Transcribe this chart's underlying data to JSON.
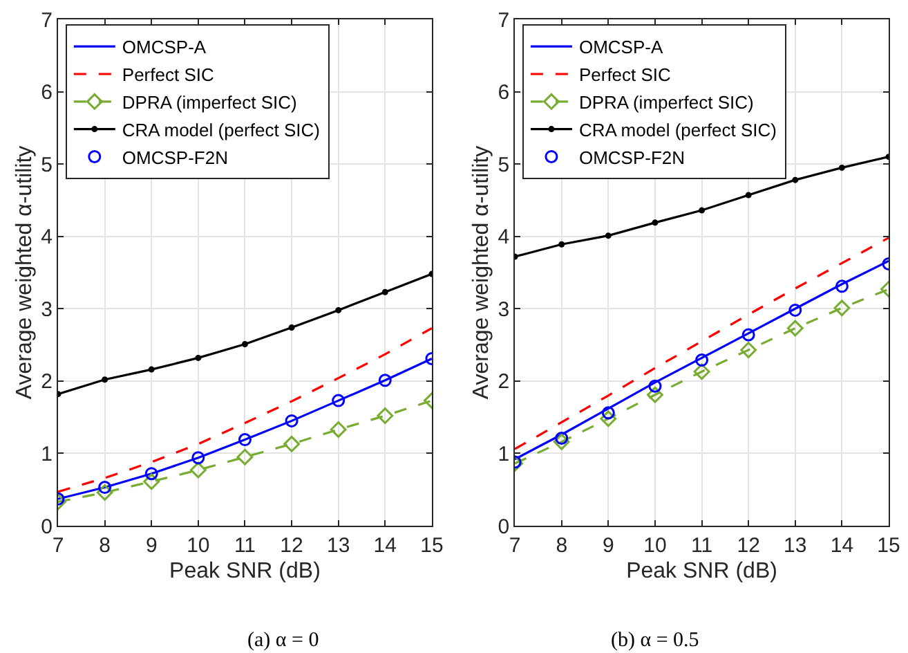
{
  "chart_data": [
    {
      "type": "line",
      "title": "(a) α = 0",
      "xlabel": "Peak SNR (dB)",
      "ylabel": "Average weighted α-utility",
      "x": [
        7,
        8,
        9,
        10,
        11,
        12,
        13,
        14,
        15
      ],
      "xlim": [
        7,
        15
      ],
      "xticks": [
        7,
        8,
        9,
        10,
        11,
        12,
        13,
        14,
        15
      ],
      "ylim": [
        0,
        7
      ],
      "yticks": [
        0,
        1,
        2,
        3,
        4,
        5,
        6,
        7
      ],
      "grid": true,
      "legend": "top left",
      "series": [
        {
          "name": "OMCSP-A",
          "color": "#0000ff",
          "marker": "none",
          "line_style": "solid",
          "values": [
            0.37,
            0.53,
            0.72,
            0.94,
            1.19,
            1.45,
            1.73,
            2.01,
            2.31
          ]
        },
        {
          "name": "Perfect SIC",
          "color": "#ff0000",
          "marker": "none",
          "line_style": "dashed",
          "values": [
            0.47,
            0.66,
            0.88,
            1.13,
            1.42,
            1.72,
            2.04,
            2.37,
            2.73
          ]
        },
        {
          "name": "DPRA (imperfect SIC)",
          "color": "#77ac30",
          "marker": "diamond",
          "line_style": "dashed",
          "values": [
            0.33,
            0.46,
            0.61,
            0.77,
            0.95,
            1.13,
            1.33,
            1.52,
            1.73
          ]
        },
        {
          "name": "CRA model (perfect SIC)",
          "color": "#000000",
          "marker": "circle",
          "line_style": "solid",
          "values": [
            1.82,
            2.02,
            2.16,
            2.32,
            2.51,
            2.74,
            2.98,
            3.23,
            3.48
          ]
        },
        {
          "name": "OMCSP-F2N",
          "color": "#0000ff",
          "type": "scatter",
          "marker": "circle",
          "values": [
            0.37,
            0.53,
            0.72,
            0.94,
            1.19,
            1.45,
            1.73,
            2.01,
            2.31
          ]
        }
      ]
    },
    {
      "type": "line",
      "title": "(b) α = 0.5",
      "xlabel": "Peak SNR (dB)",
      "ylabel": "Average weighted α-utility",
      "x": [
        7,
        8,
        9,
        10,
        11,
        12,
        13,
        14,
        15
      ],
      "xlim": [
        7,
        15
      ],
      "xticks": [
        7,
        8,
        9,
        10,
        11,
        12,
        13,
        14,
        15
      ],
      "ylim": [
        0,
        7
      ],
      "yticks": [
        0,
        1,
        2,
        3,
        4,
        5,
        6,
        7
      ],
      "grid": true,
      "legend": "top left",
      "series": [
        {
          "name": "OMCSP-A",
          "color": "#0000ff",
          "marker": "none",
          "line_style": "solid",
          "values": [
            0.92,
            1.26,
            1.62,
            1.98,
            2.32,
            2.66,
            3.0,
            3.34,
            3.66
          ]
        },
        {
          "name": "Perfect SIC",
          "color": "#ff0000",
          "marker": "none",
          "line_style": "dashed",
          "values": [
            1.06,
            1.43,
            1.8,
            2.18,
            2.55,
            2.92,
            3.28,
            3.63,
            3.98
          ]
        },
        {
          "name": "DPRA (imperfect SIC)",
          "color": "#77ac30",
          "marker": "diamond",
          "line_style": "dashed",
          "values": [
            0.86,
            1.16,
            1.48,
            1.81,
            2.13,
            2.43,
            2.73,
            3.01,
            3.27
          ]
        },
        {
          "name": "CRA model (perfect SIC)",
          "color": "#000000",
          "marker": "circle",
          "line_style": "solid",
          "values": [
            3.72,
            3.89,
            4.01,
            4.19,
            4.36,
            4.57,
            4.78,
            4.95,
            5.1
          ]
        },
        {
          "name": "OMCSP-F2N",
          "color": "#0000ff",
          "type": "scatter",
          "marker": "circle",
          "values": [
            0.88,
            1.21,
            1.56,
            1.93,
            2.29,
            2.64,
            2.98,
            3.31,
            3.62
          ]
        }
      ]
    }
  ]
}
